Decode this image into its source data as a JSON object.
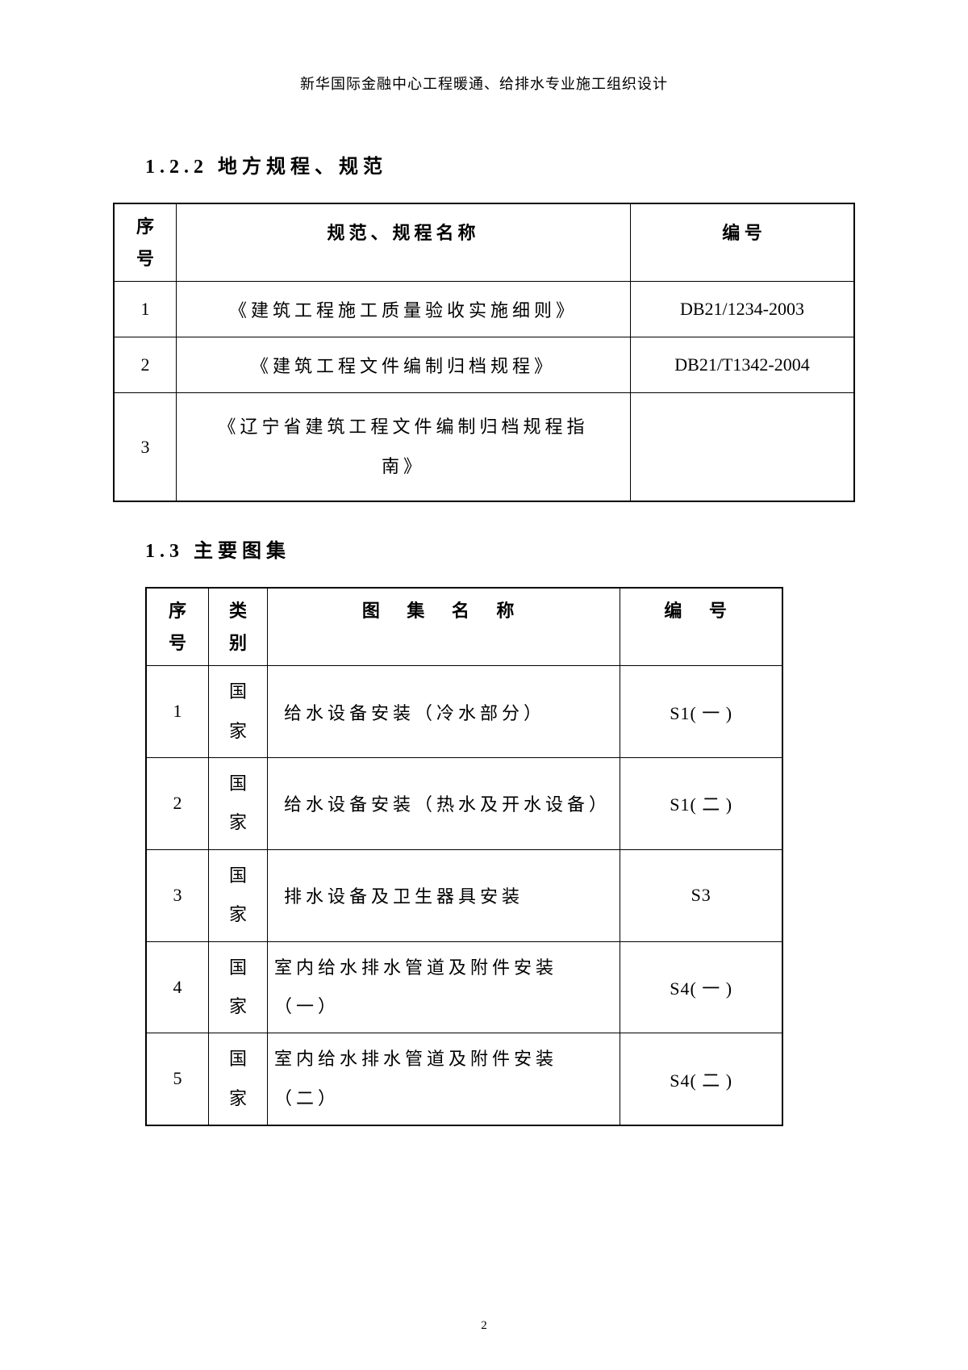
{
  "header": "新华国际金融中心工程暖通、给排水专业施工组织设计",
  "section_1_2_2": {
    "title": "1.2.2 地方规程、规范",
    "columns": {
      "seq_l1": "序",
      "seq_l2": "号",
      "name": "规范、规程名称",
      "code": "编   号"
    },
    "rows": [
      {
        "seq": "1",
        "name": "《建筑工程施工质量验收实施细则》",
        "code": "DB21/1234-2003"
      },
      {
        "seq": "2",
        "name": "《建筑工程文件编制归档规程》",
        "code": "DB21/T1342-2004"
      },
      {
        "seq": "3",
        "name_l1": "《辽宁省建筑工程文件编制归档规程指",
        "name_l2": "南》",
        "code": ""
      }
    ]
  },
  "section_1_3": {
    "title": "1.3 主要图集",
    "columns": {
      "seq_l1": "序",
      "seq_l2": "号",
      "cat_l1": "类",
      "cat_l2": "别",
      "name": "图  集  名  称",
      "code": "编   号"
    },
    "rows": [
      {
        "seq": "1",
        "cat_l1": "国",
        "cat_l2": "家",
        "name": "给水设备安装（冷水部分）",
        "code": "S1( 一   )"
      },
      {
        "seq": "2",
        "cat_l1": "国",
        "cat_l2": "家",
        "name": "给水设备安装（热水及开水设备）",
        "code": "S1( 二   )"
      },
      {
        "seq": "3",
        "cat_l1": "国",
        "cat_l2": "家",
        "name": "排水设备及卫生器具安装",
        "code": "S3"
      },
      {
        "seq": "4",
        "cat_l1": "国",
        "cat_l2": "家",
        "name_l1": "室内给水排水管道及附件安装",
        "name_l2": "（一）",
        "code": "S4( 一   )"
      },
      {
        "seq": "5",
        "cat_l1": "国",
        "cat_l2": "家",
        "name_l1": "室内给水排水管道及附件安装",
        "name_l2": "（二）",
        "code": "S4( 二   )"
      }
    ]
  },
  "page_number": "2"
}
